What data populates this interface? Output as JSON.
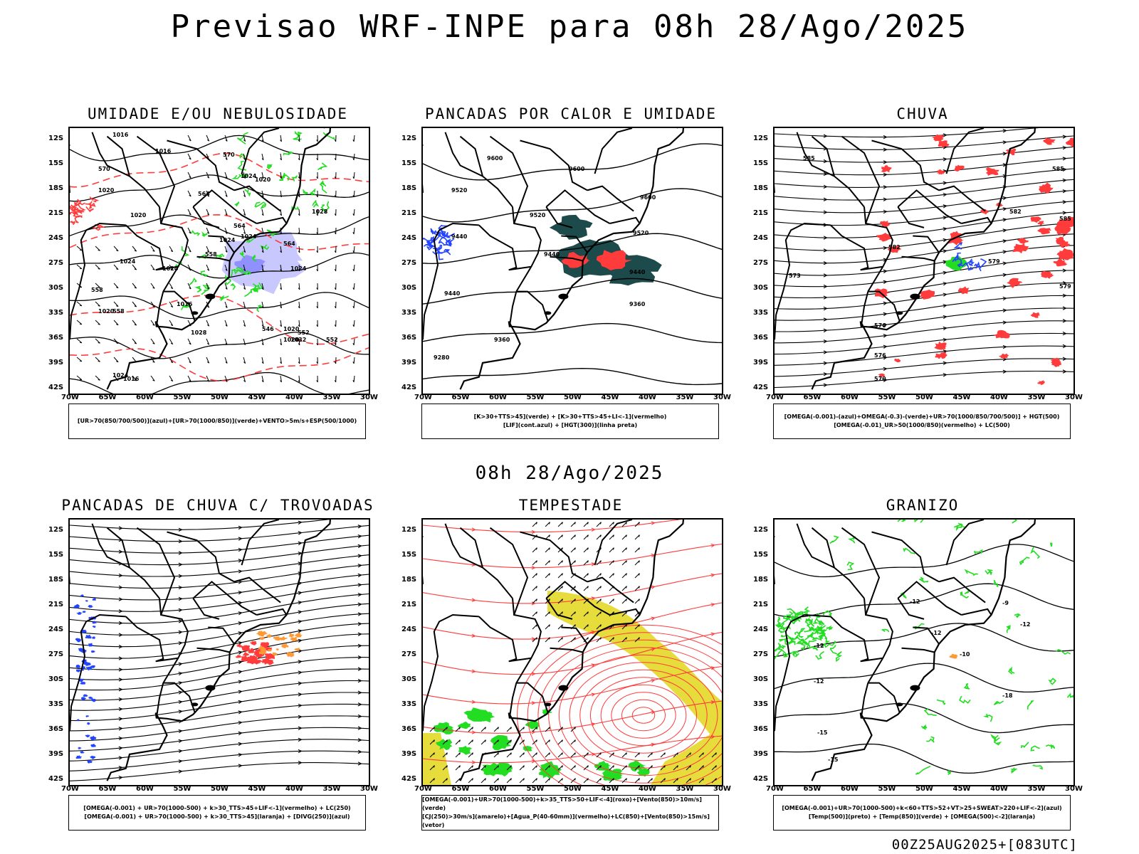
{
  "title": "Previsao WRF-INPE  para 08h 28/Ago/2025",
  "mid_title": "08h 28/Ago/2025",
  "stamp": "00Z25AUG2025+[083UTC]",
  "axes": {
    "lat": [
      "12S",
      "15S",
      "18S",
      "21S",
      "24S",
      "27S",
      "30S",
      "33S",
      "36S",
      "39S",
      "42S"
    ],
    "lon": [
      "70W",
      "65W",
      "60W",
      "55W",
      "50W",
      "45W",
      "40W",
      "35W",
      "30W"
    ]
  },
  "colors": {
    "red": "#ff3b3b",
    "green": "#22dd22",
    "blue": "#2244ff",
    "dark_teal": "#1d4a4a",
    "yellow": "#e6dc3c",
    "orange": "#ff9933",
    "lavender": "#9a9aff"
  },
  "panels": [
    {
      "id": "umidade",
      "title": "UMIDADE E/OU NEBULOSIDADE",
      "legend": [
        "[UR>70(850/700/500)](azul)+[UR>70(1000/850)](verde)+VENTO>5m/s+ESP(500/1000)"
      ],
      "contour_labels": [
        "1016",
        "1016",
        "1020",
        "1020",
        "1024",
        "1024",
        "1024",
        "1020",
        "1016",
        "1020",
        "1024",
        "1028",
        "1020",
        "1024",
        "1024",
        "1028",
        "1032",
        "1020",
        "1016",
        "1024",
        "570",
        "570",
        "564",
        "564",
        "564",
        "558",
        "558",
        "558",
        "552",
        "552",
        "546"
      ]
    },
    {
      "id": "pancadas-calor",
      "title": "PANCADAS POR CALOR E UMIDADE",
      "legend": [
        "[K>30+TTS>45](verde) + [K>30+TTS>45+LI<-1](vermelho)",
        "[LIF](cont.azul) + [HGT(300)](linha preta)"
      ],
      "contour_labels": [
        "9600",
        "9600",
        "9600",
        "9520",
        "9520",
        "9520",
        "9440",
        "9440",
        "9440",
        "9440",
        "9360",
        "9360",
        "9280"
      ]
    },
    {
      "id": "chuva",
      "title": "CHUVA",
      "legend": [
        "[OMEGA(-0.001)-(azul)+OMEGA(-0.3)-(verde)+UR>70(1000/850/700/500)] + HGT(500)",
        "[OMEGA(-0.01)_UR>50(1000/850)(vermelho) + LC(500)"
      ],
      "contour_labels": [
        "585",
        "585",
        "585",
        "582",
        "582",
        "579",
        "579",
        "576",
        "576",
        "573",
        "570"
      ]
    },
    {
      "id": "pancadas-trovoadas",
      "title": "PANCADAS DE CHUVA C/ TROVOADAS",
      "legend": [
        "[OMEGA(-0.001) + UR>70(1000-500) + k>30_TTS>45+LIF<-1](vermelho) + LC(250)",
        "[OMEGA(-0.001) + UR>70(1000-500) + k>30_TTS>45](laranja) + [DIVG(250)](azul)"
      ],
      "contour_labels": []
    },
    {
      "id": "tempestade",
      "title": "TEMPESTADE",
      "legend": [
        "[OMEGA(-0.001)+UR>70(1000-500)+k>35_TTS>50+LIF<-4](roxo)+[Vento(850)>10m/s](verde)",
        "[CJ(250)>30m/s](amarelo)+[Agua_P(40-60mm)](vermelho)+LC(850)+[Vento(850)>15m/s](vetor)"
      ],
      "contour_labels": []
    },
    {
      "id": "granizo",
      "title": "GRANIZO",
      "legend": [
        "[OMEGA(-0.001)+UR>70(1000-500)+k<60+TTS>52+VT>25+SWEAT>220+LIF<-2](azul)",
        "[Temp(500)](preto) + [Temp(850)](verde) + [OMEGA(500)<-2](laranja)"
      ],
      "contour_labels": [
        "-12",
        "-12",
        "-12",
        "-12",
        "-10",
        "-9",
        "-15",
        "-15",
        "-18",
        "-12"
      ]
    }
  ]
}
